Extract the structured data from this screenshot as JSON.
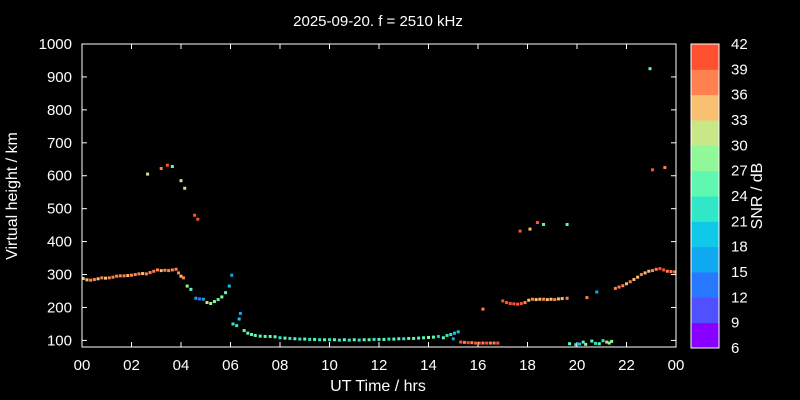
{
  "chart_data": {
    "type": "scatter",
    "title": "2025-09-20. f = 2510 kHz",
    "xlabel": "UT Time / hrs",
    "ylabel": "Virtual height / km",
    "xlim": [
      0,
      24
    ],
    "ylim": [
      80,
      1000
    ],
    "xticks": [
      "00",
      "02",
      "04",
      "06",
      "08",
      "10",
      "12",
      "14",
      "16",
      "18",
      "20",
      "22",
      "00"
    ],
    "yticks": [
      100,
      200,
      300,
      400,
      500,
      600,
      700,
      800,
      900,
      1000
    ],
    "grid": false,
    "colorbar": {
      "label": "SNR / dB",
      "min": 6,
      "max": 42,
      "ticks": [
        6,
        9,
        12,
        15,
        18,
        21,
        24,
        27,
        30,
        33,
        36,
        39,
        42
      ],
      "colors": [
        "#8800ff",
        "#5050ff",
        "#2878ff",
        "#10a8f0",
        "#10c8e8",
        "#30e8c8",
        "#60f8b0",
        "#90f898",
        "#c8e888",
        "#f8c070",
        "#ff8050",
        "#ff5030"
      ]
    },
    "series": [
      {
        "points": [
          {
            "x": 0.05,
            "y": 288,
            "snr": 33
          },
          {
            "x": 0.2,
            "y": 284,
            "snr": 35
          },
          {
            "x": 0.35,
            "y": 283,
            "snr": 36
          },
          {
            "x": 0.5,
            "y": 285,
            "snr": 37
          },
          {
            "x": 0.65,
            "y": 287,
            "snr": 35
          },
          {
            "x": 0.8,
            "y": 290,
            "snr": 36
          },
          {
            "x": 0.95,
            "y": 289,
            "snr": 34
          },
          {
            "x": 1.1,
            "y": 290,
            "snr": 37
          },
          {
            "x": 1.25,
            "y": 292,
            "snr": 36
          },
          {
            "x": 1.4,
            "y": 295,
            "snr": 37
          },
          {
            "x": 1.55,
            "y": 296,
            "snr": 36
          },
          {
            "x": 1.7,
            "y": 296,
            "snr": 37
          },
          {
            "x": 1.85,
            "y": 297,
            "snr": 35
          },
          {
            "x": 2.0,
            "y": 298,
            "snr": 36
          },
          {
            "x": 2.15,
            "y": 300,
            "snr": 37
          },
          {
            "x": 2.3,
            "y": 302,
            "snr": 36
          },
          {
            "x": 2.45,
            "y": 303,
            "snr": 34
          },
          {
            "x": 2.6,
            "y": 302,
            "snr": 36
          },
          {
            "x": 2.75,
            "y": 306,
            "snr": 37
          },
          {
            "x": 2.9,
            "y": 310,
            "snr": 36
          },
          {
            "x": 3.05,
            "y": 314,
            "snr": 38
          },
          {
            "x": 3.2,
            "y": 312,
            "snr": 35
          },
          {
            "x": 3.35,
            "y": 313,
            "snr": 37
          },
          {
            "x": 3.5,
            "y": 312,
            "snr": 36
          },
          {
            "x": 3.65,
            "y": 314,
            "snr": 37
          },
          {
            "x": 3.8,
            "y": 316,
            "snr": 38
          },
          {
            "x": 3.9,
            "y": 305,
            "snr": 36
          },
          {
            "x": 4.0,
            "y": 295,
            "snr": 35
          },
          {
            "x": 4.1,
            "y": 290,
            "snr": 36
          },
          {
            "x": 4.25,
            "y": 265,
            "snr": 28
          },
          {
            "x": 4.4,
            "y": 255,
            "snr": 26
          },
          {
            "x": 4.6,
            "y": 228,
            "snr": 15
          },
          {
            "x": 4.75,
            "y": 226,
            "snr": 14
          },
          {
            "x": 4.9,
            "y": 225,
            "snr": 16
          },
          {
            "x": 5.05,
            "y": 215,
            "snr": 30
          },
          {
            "x": 5.2,
            "y": 212,
            "snr": 28
          },
          {
            "x": 5.35,
            "y": 218,
            "snr": 27
          },
          {
            "x": 5.5,
            "y": 224,
            "snr": 26
          },
          {
            "x": 5.65,
            "y": 232,
            "snr": 27
          },
          {
            "x": 5.8,
            "y": 245,
            "snr": 25
          },
          {
            "x": 5.95,
            "y": 265,
            "snr": 18
          },
          {
            "x": 6.05,
            "y": 298,
            "snr": 15
          },
          {
            "x": 6.1,
            "y": 150,
            "snr": 21
          },
          {
            "x": 6.25,
            "y": 145,
            "snr": 22
          },
          {
            "x": 6.35,
            "y": 165,
            "snr": 19
          },
          {
            "x": 6.4,
            "y": 182,
            "snr": 17
          },
          {
            "x": 6.55,
            "y": 130,
            "snr": 24
          },
          {
            "x": 6.7,
            "y": 122,
            "snr": 25
          },
          {
            "x": 6.85,
            "y": 118,
            "snr": 26
          },
          {
            "x": 7.0,
            "y": 115,
            "snr": 24
          },
          {
            "x": 7.2,
            "y": 113,
            "snr": 25
          },
          {
            "x": 7.4,
            "y": 112,
            "snr": 26
          },
          {
            "x": 7.6,
            "y": 112,
            "snr": 24
          },
          {
            "x": 7.8,
            "y": 111,
            "snr": 25
          },
          {
            "x": 8.0,
            "y": 108,
            "snr": 23
          },
          {
            "x": 8.2,
            "y": 107,
            "snr": 24
          },
          {
            "x": 8.4,
            "y": 106,
            "snr": 22
          },
          {
            "x": 8.6,
            "y": 105,
            "snr": 25
          },
          {
            "x": 8.8,
            "y": 104,
            "snr": 23
          },
          {
            "x": 9.0,
            "y": 104,
            "snr": 24
          },
          {
            "x": 9.2,
            "y": 103,
            "snr": 22
          },
          {
            "x": 9.4,
            "y": 103,
            "snr": 25
          },
          {
            "x": 9.6,
            "y": 102,
            "snr": 23
          },
          {
            "x": 9.8,
            "y": 102,
            "snr": 24
          },
          {
            "x": 10.0,
            "y": 102,
            "snr": 22
          },
          {
            "x": 10.2,
            "y": 102,
            "snr": 25
          },
          {
            "x": 10.4,
            "y": 101,
            "snr": 23
          },
          {
            "x": 10.6,
            "y": 102,
            "snr": 24
          },
          {
            "x": 10.8,
            "y": 101,
            "snr": 22
          },
          {
            "x": 11.0,
            "y": 102,
            "snr": 25
          },
          {
            "x": 11.2,
            "y": 101,
            "snr": 23
          },
          {
            "x": 11.4,
            "y": 102,
            "snr": 24
          },
          {
            "x": 11.6,
            "y": 102,
            "snr": 26
          },
          {
            "x": 11.8,
            "y": 103,
            "snr": 23
          },
          {
            "x": 12.0,
            "y": 103,
            "snr": 24
          },
          {
            "x": 12.2,
            "y": 103,
            "snr": 25
          },
          {
            "x": 12.4,
            "y": 104,
            "snr": 23
          },
          {
            "x": 12.6,
            "y": 104,
            "snr": 24
          },
          {
            "x": 12.8,
            "y": 105,
            "snr": 26
          },
          {
            "x": 13.0,
            "y": 105,
            "snr": 23
          },
          {
            "x": 13.2,
            "y": 106,
            "snr": 25
          },
          {
            "x": 13.4,
            "y": 106,
            "snr": 24
          },
          {
            "x": 13.6,
            "y": 107,
            "snr": 26
          },
          {
            "x": 13.8,
            "y": 108,
            "snr": 25
          },
          {
            "x": 14.0,
            "y": 109,
            "snr": 27
          },
          {
            "x": 14.2,
            "y": 110,
            "snr": 24
          },
          {
            "x": 14.4,
            "y": 112,
            "snr": 20
          },
          {
            "x": 14.6,
            "y": 108,
            "snr": 26
          },
          {
            "x": 14.75,
            "y": 115,
            "snr": 22
          },
          {
            "x": 14.9,
            "y": 118,
            "snr": 21
          },
          {
            "x": 15.05,
            "y": 122,
            "snr": 20
          },
          {
            "x": 15.2,
            "y": 126,
            "snr": 19
          },
          {
            "x": 15.0,
            "y": 105,
            "snr": 15
          },
          {
            "x": 15.3,
            "y": 95,
            "snr": 39
          },
          {
            "x": 15.45,
            "y": 94,
            "snr": 38
          },
          {
            "x": 15.6,
            "y": 93,
            "snr": 40
          },
          {
            "x": 15.75,
            "y": 93,
            "snr": 38
          },
          {
            "x": 15.9,
            "y": 92,
            "snr": 39
          },
          {
            "x": 16.05,
            "y": 92,
            "snr": 40
          },
          {
            "x": 16.2,
            "y": 92,
            "snr": 38
          },
          {
            "x": 16.35,
            "y": 92,
            "snr": 39
          },
          {
            "x": 16.5,
            "y": 92,
            "snr": 37
          },
          {
            "x": 16.65,
            "y": 92,
            "snr": 38
          },
          {
            "x": 16.8,
            "y": 92,
            "snr": 39
          },
          {
            "x": 16.2,
            "y": 195,
            "snr": 36
          },
          {
            "x": 17.0,
            "y": 220,
            "snr": 40
          },
          {
            "x": 17.15,
            "y": 215,
            "snr": 39
          },
          {
            "x": 17.3,
            "y": 212,
            "snr": 41
          },
          {
            "x": 17.45,
            "y": 211,
            "snr": 40
          },
          {
            "x": 17.6,
            "y": 210,
            "snr": 39
          },
          {
            "x": 17.75,
            "y": 212,
            "snr": 40
          },
          {
            "x": 17.9,
            "y": 215,
            "snr": 38
          },
          {
            "x": 18.05,
            "y": 222,
            "snr": 35
          },
          {
            "x": 18.2,
            "y": 225,
            "snr": 36
          },
          {
            "x": 18.35,
            "y": 224,
            "snr": 34
          },
          {
            "x": 18.5,
            "y": 225,
            "snr": 35
          },
          {
            "x": 18.65,
            "y": 225,
            "snr": 36
          },
          {
            "x": 18.8,
            "y": 224,
            "snr": 34
          },
          {
            "x": 18.95,
            "y": 225,
            "snr": 35
          },
          {
            "x": 19.1,
            "y": 224,
            "snr": 36
          },
          {
            "x": 19.25,
            "y": 226,
            "snr": 35
          },
          {
            "x": 19.4,
            "y": 227,
            "snr": 34
          },
          {
            "x": 19.6,
            "y": 228,
            "snr": 36
          },
          {
            "x": 20.4,
            "y": 230,
            "snr": 38
          },
          {
            "x": 17.7,
            "y": 432,
            "snr": 39
          },
          {
            "x": 18.1,
            "y": 438,
            "snr": 34
          },
          {
            "x": 18.4,
            "y": 458,
            "snr": 40
          },
          {
            "x": 18.65,
            "y": 452,
            "snr": 25
          },
          {
            "x": 19.6,
            "y": 452,
            "snr": 24
          },
          {
            "x": 19.7,
            "y": 90,
            "snr": 24
          },
          {
            "x": 19.95,
            "y": 87,
            "snr": 22
          },
          {
            "x": 20.1,
            "y": 89,
            "snr": 19
          },
          {
            "x": 20.25,
            "y": 95,
            "snr": 26
          },
          {
            "x": 20.35,
            "y": 88,
            "snr": 27
          },
          {
            "x": 20.6,
            "y": 98,
            "snr": 24
          },
          {
            "x": 20.75,
            "y": 91,
            "snr": 22
          },
          {
            "x": 20.9,
            "y": 90,
            "snr": 25
          },
          {
            "x": 21.05,
            "y": 99,
            "snr": 23
          },
          {
            "x": 21.2,
            "y": 95,
            "snr": 33
          },
          {
            "x": 21.3,
            "y": 92,
            "snr": 28
          },
          {
            "x": 21.4,
            "y": 97,
            "snr": 27
          },
          {
            "x": 20.8,
            "y": 247,
            "snr": 17
          },
          {
            "x": 21.55,
            "y": 258,
            "snr": 38
          },
          {
            "x": 21.7,
            "y": 262,
            "snr": 36
          },
          {
            "x": 21.85,
            "y": 266,
            "snr": 37
          },
          {
            "x": 22.0,
            "y": 272,
            "snr": 35
          },
          {
            "x": 22.15,
            "y": 278,
            "snr": 36
          },
          {
            "x": 22.3,
            "y": 285,
            "snr": 34
          },
          {
            "x": 22.45,
            "y": 292,
            "snr": 35
          },
          {
            "x": 22.6,
            "y": 300,
            "snr": 36
          },
          {
            "x": 22.75,
            "y": 305,
            "snr": 34
          },
          {
            "x": 22.9,
            "y": 310,
            "snr": 35
          },
          {
            "x": 23.05,
            "y": 312,
            "snr": 36
          },
          {
            "x": 23.2,
            "y": 316,
            "snr": 38
          },
          {
            "x": 23.35,
            "y": 318,
            "snr": 40
          },
          {
            "x": 23.5,
            "y": 314,
            "snr": 39
          },
          {
            "x": 23.65,
            "y": 310,
            "snr": 37
          },
          {
            "x": 23.8,
            "y": 309,
            "snr": 38
          },
          {
            "x": 23.95,
            "y": 308,
            "snr": 36
          },
          {
            "x": 2.65,
            "y": 605,
            "snr": 30
          },
          {
            "x": 3.2,
            "y": 622,
            "snr": 36
          },
          {
            "x": 3.45,
            "y": 632,
            "snr": 39
          },
          {
            "x": 3.65,
            "y": 628,
            "snr": 24
          },
          {
            "x": 4.0,
            "y": 585,
            "snr": 32
          },
          {
            "x": 4.15,
            "y": 562,
            "snr": 31
          },
          {
            "x": 4.55,
            "y": 480,
            "snr": 40
          },
          {
            "x": 4.68,
            "y": 468,
            "snr": 39
          },
          {
            "x": 23.05,
            "y": 618,
            "snr": 40
          },
          {
            "x": 23.55,
            "y": 625,
            "snr": 36
          },
          {
            "x": 22.95,
            "y": 925,
            "snr": 24
          }
        ]
      }
    ]
  }
}
